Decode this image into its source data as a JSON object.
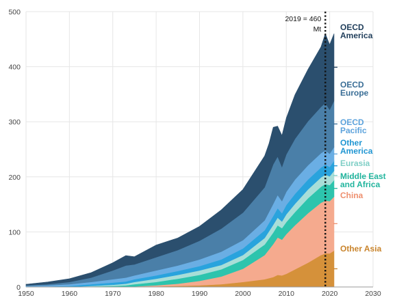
{
  "chart_data": {
    "type": "area",
    "stacked": true,
    "xlim": [
      1950,
      2030
    ],
    "ylim": [
      0,
      500
    ],
    "x_ticks": [
      "1950",
      "1960",
      "1970",
      "1980",
      "1990",
      "2000",
      "2010",
      "2020",
      "2030"
    ],
    "y_ticks": [
      "0",
      "100",
      "200",
      "300",
      "400",
      "500"
    ],
    "grid": true,
    "legend": "inline-right",
    "x": [
      1950,
      1955,
      1960,
      1965,
      1970,
      1973,
      1975,
      1980,
      1985,
      1990,
      1995,
      2000,
      2005,
      2006,
      2007,
      2008,
      2009,
      2010,
      2012,
      2015,
      2018,
      2019,
      2020,
      2021
    ],
    "series": [
      {
        "key": "other_asia",
        "name": "Other Asia",
        "color": "#d5913a",
        "values": [
          0,
          0,
          0,
          0,
          0,
          0,
          0,
          1,
          2,
          3,
          5,
          9,
          14,
          16,
          18,
          22,
          21,
          24,
          32,
          44,
          58,
          61,
          61,
          66
        ]
      },
      {
        "key": "china",
        "name": "China",
        "color": "#f5aa8e",
        "values": [
          0,
          0,
          0,
          0,
          0,
          0,
          1,
          2,
          4,
          8,
          14,
          24,
          44,
          52,
          60,
          68,
          65,
          72,
          80,
          90,
          95,
          96,
          95,
          98
        ]
      },
      {
        "key": "mea",
        "name": "Middle East and Africa",
        "color": "#2dc4ad",
        "values": [
          0,
          0,
          0,
          1,
          2,
          3,
          4,
          6,
          9,
          11,
          13,
          16,
          19,
          20,
          21,
          22,
          21,
          22,
          24,
          27,
          29,
          30,
          29,
          30
        ]
      },
      {
        "key": "eurasia",
        "name": "Eurasia",
        "color": "#a8ded8",
        "values": [
          0,
          0,
          0,
          1,
          2,
          3,
          4,
          6,
          7,
          8,
          8,
          9,
          12,
          13,
          14,
          14,
          12,
          14,
          15,
          16,
          17,
          17,
          16,
          17
        ]
      },
      {
        "key": "other_america",
        "name": "Other America",
        "color": "#29a3dd",
        "values": [
          1,
          1,
          2,
          3,
          4,
          4,
          5,
          6,
          7,
          8,
          10,
          12,
          14,
          15,
          16,
          17,
          15,
          17,
          18,
          18,
          18,
          18,
          17,
          18
        ]
      },
      {
        "key": "oecd_pacific",
        "name": "OECD Pacific",
        "color": "#6aaee4",
        "values": [
          1,
          2,
          3,
          4,
          6,
          7,
          7,
          9,
          10,
          12,
          14,
          15,
          18,
          20,
          22,
          24,
          22,
          24,
          26,
          26,
          26,
          26,
          24,
          25
        ]
      },
      {
        "key": "oecd_europe",
        "name": "OECD Europe",
        "color": "#4a7fa8",
        "values": [
          1,
          2,
          4,
          8,
          16,
          22,
          20,
          24,
          28,
          34,
          42,
          50,
          60,
          66,
          72,
          70,
          62,
          68,
          74,
          80,
          84,
          86,
          80,
          84
        ]
      },
      {
        "key": "oecd_america",
        "name": "OECD America",
        "color": "#2b4f6e",
        "values": [
          2,
          4,
          6,
          9,
          14,
          18,
          14,
          22,
          22,
          26,
          34,
          42,
          57,
          58,
          67,
          55,
          57,
          66,
          80,
          94,
          109,
          126,
          118,
          122
        ]
      }
    ],
    "annotation": {
      "line1": "2019 = 460",
      "line2": "Mt",
      "x": 2019
    }
  },
  "labels": {
    "oecd_america": [
      "OECD",
      "America"
    ],
    "oecd_europe": [
      "OECD",
      "Europe"
    ],
    "oecd_pacific": [
      "OECD",
      "Pacific"
    ],
    "other_america": [
      "Other",
      "America"
    ],
    "eurasia": [
      "Eurasia"
    ],
    "mea": [
      "Middle East",
      "and Africa"
    ],
    "china": [
      "China"
    ],
    "other_asia": [
      "Other Asia"
    ]
  },
  "label_colors": {
    "oecd_america": "#1f3d5a",
    "oecd_europe": "#3a6e96",
    "oecd_pacific": "#5da3dc",
    "other_america": "#1e95d2",
    "eurasia": "#7fcfc6",
    "mea": "#22b59e",
    "china": "#ee8f6e",
    "other_asia": "#c9842c"
  }
}
